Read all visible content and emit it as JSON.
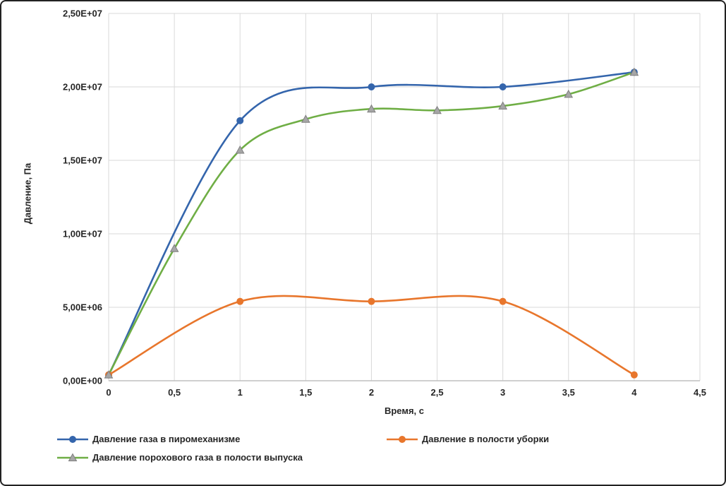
{
  "chart_data": {
    "type": "line",
    "title": "",
    "xlabel": "Время, с",
    "ylabel": "Давление, Па",
    "xlim": [
      0,
      4.5
    ],
    "ylim": [
      0,
      25000000
    ],
    "x_ticks": [
      "0",
      "0,5",
      "1",
      "1,5",
      "2",
      "2,5",
      "3",
      "3,5",
      "4",
      "4,5"
    ],
    "y_ticks": [
      "0,00E+00",
      "5,00E+06",
      "1,00E+07",
      "1,50E+07",
      "2,00E+07",
      "2,50E+07"
    ],
    "grid": "both",
    "legend_position": "bottom",
    "axis_color": "#bfbfbf",
    "grid_color": "#d9d9d9",
    "text_color": "#262626",
    "series": [
      {
        "name": "Давление газа в пиромеханизме",
        "line_color": "#3465ac",
        "marker": "circle",
        "marker_color": "#3465ac",
        "x": [
          0,
          1,
          2,
          3,
          4
        ],
        "y": [
          400000,
          17700000,
          20000000,
          20000000,
          21000000
        ]
      },
      {
        "name": "Давление в полости уборки",
        "line_color": "#e8762c",
        "marker": "circle",
        "marker_color": "#e8762c",
        "x": [
          0,
          1,
          2,
          3,
          4
        ],
        "y": [
          400000,
          5400000,
          5400000,
          5400000,
          400000
        ]
      },
      {
        "name": "Давление порохового газа в полости выпуска",
        "line_color": "#6fae45",
        "marker": "triangle",
        "marker_color": "#a6a6a6",
        "marker_edge": "#7f7f7f",
        "x": [
          0,
          0.5,
          1,
          1.5,
          2,
          2.5,
          3,
          3.5,
          4
        ],
        "y": [
          400000,
          9000000,
          15700000,
          17800000,
          18500000,
          18400000,
          18700000,
          19500000,
          21000000
        ]
      }
    ]
  }
}
